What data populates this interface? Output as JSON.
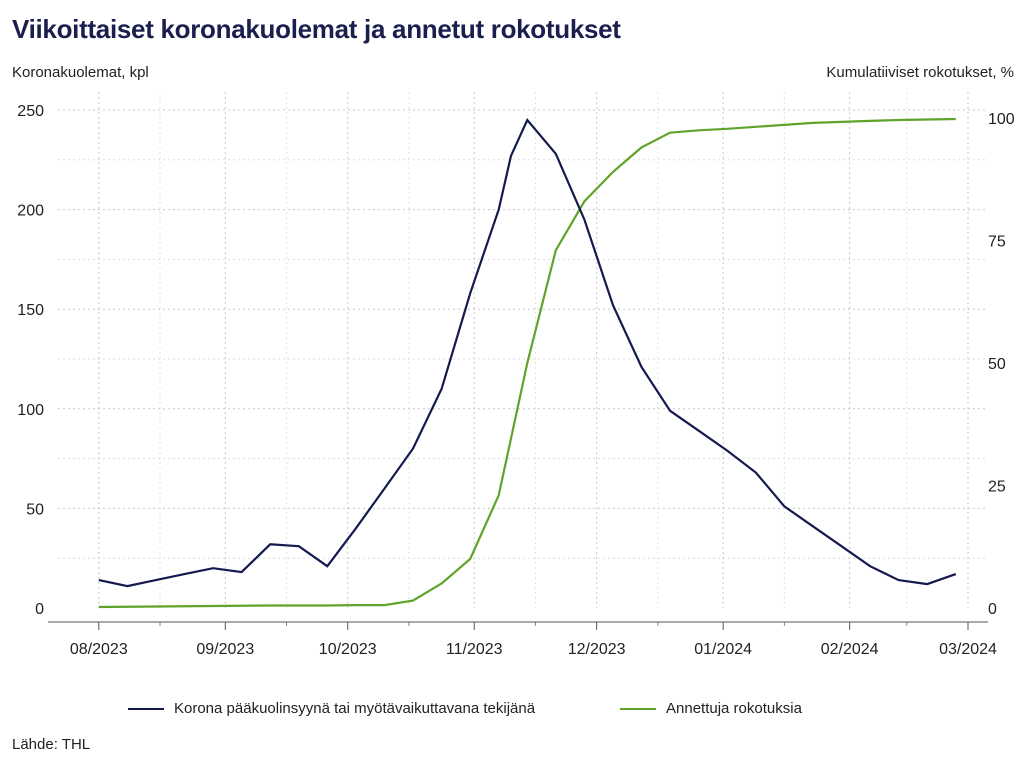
{
  "title": "Viikoittaiset koronakuolemat ja annetut rokotukset",
  "source": "Lähde: THL",
  "colors": {
    "deaths": "#141a4f",
    "vaccinations": "#5fa32a",
    "grid": "#c8c8c8"
  },
  "chart_data": {
    "type": "line",
    "ylabel_left": "Koronakuolemat, kpl",
    "ylabel_right": "Kumulatiiviset rokotukset, %",
    "x_tick_labels": [
      "08/2023",
      "09/2023",
      "10/2023",
      "11/2023",
      "12/2023",
      "01/2024",
      "02/2024",
      "03/2024"
    ],
    "y_left_ticks": [
      "0",
      "50",
      "100",
      "150",
      "200",
      "250"
    ],
    "y_right_ticks": [
      "0",
      "25",
      "50",
      "75",
      "100"
    ],
    "ylim_left": [
      0,
      250
    ],
    "ylim_right": [
      0,
      100
    ],
    "grid": true,
    "legend_position": "bottom",
    "series": [
      {
        "name": "Korona pääkuolinsyynä tai myötävaikuttavana tekijänä",
        "axis": "left",
        "x": [
          "2023-08-01",
          "2023-08-08",
          "2023-08-15",
          "2023-08-22",
          "2023-08-29",
          "2023-09-05",
          "2023-09-12",
          "2023-09-19",
          "2023-09-26",
          "2023-10-03",
          "2023-10-10",
          "2023-10-17",
          "2023-10-24",
          "2023-10-31",
          "2023-11-07",
          "2023-11-10",
          "2023-11-14",
          "2023-11-21",
          "2023-11-28",
          "2023-12-05",
          "2023-12-12",
          "2023-12-19",
          "2023-12-26",
          "2024-01-02",
          "2024-01-09",
          "2024-01-16",
          "2024-01-23",
          "2024-01-30",
          "2024-02-06",
          "2024-02-13",
          "2024-02-20",
          "2024-02-27"
        ],
        "y": [
          14,
          11,
          14,
          17,
          20,
          18,
          32,
          31,
          21,
          40,
          60,
          80,
          110,
          158,
          200,
          227,
          245,
          228,
          195,
          152,
          121,
          99,
          89,
          79,
          68,
          51,
          41,
          31,
          21,
          14,
          12,
          17
        ]
      },
      {
        "name": "Annettuja rokotuksia",
        "axis": "right",
        "x": [
          "2023-08-01",
          "2023-08-15",
          "2023-08-29",
          "2023-09-12",
          "2023-09-26",
          "2023-10-03",
          "2023-10-10",
          "2023-10-17",
          "2023-10-24",
          "2023-10-31",
          "2023-11-07",
          "2023-11-14",
          "2023-11-21",
          "2023-11-28",
          "2023-12-05",
          "2023-12-12",
          "2023-12-19",
          "2023-12-26",
          "2024-01-02",
          "2024-01-09",
          "2024-01-16",
          "2024-01-23",
          "2024-01-30",
          "2024-02-06",
          "2024-02-13",
          "2024-02-20",
          "2024-02-27"
        ],
        "y": [
          0.2,
          0.3,
          0.4,
          0.5,
          0.5,
          0.6,
          0.6,
          1.5,
          5,
          10,
          23,
          50,
          73,
          83,
          89,
          94,
          97,
          97.5,
          97.8,
          98.2,
          98.6,
          99,
          99.2,
          99.4,
          99.6,
          99.7,
          99.8
        ]
      }
    ]
  }
}
